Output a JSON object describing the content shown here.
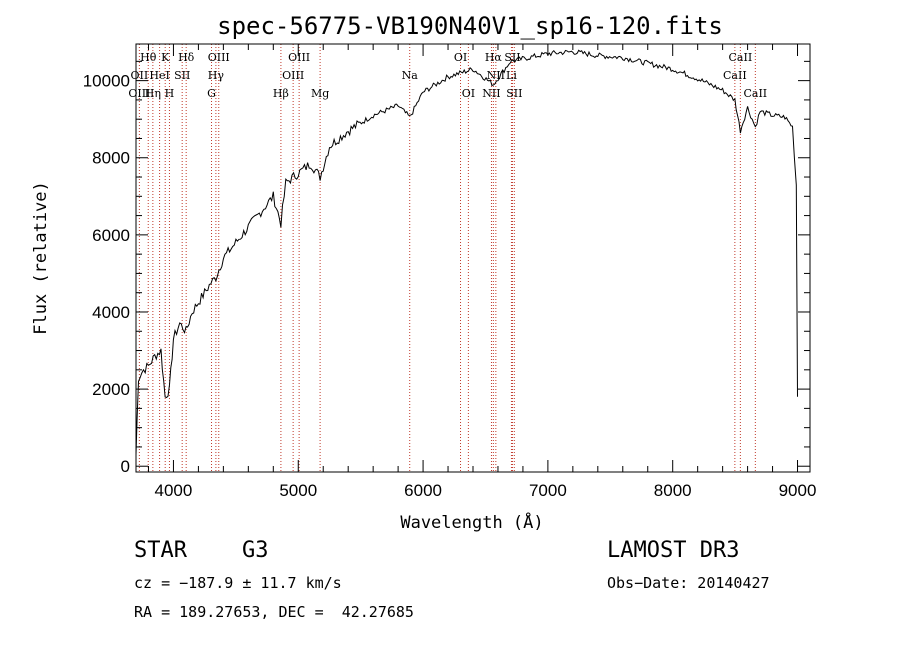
{
  "chart_data": {
    "type": "line",
    "title": "spec-56775-VB190N40V1_sp16-120.fits",
    "xlabel": "Wavelength (Å)",
    "ylabel": "Flux (relative)",
    "xlim": [
      3700,
      9100
    ],
    "ylim": [
      -150,
      10950
    ],
    "xticks": [
      4000,
      5000,
      6000,
      7000,
      8000,
      9000
    ],
    "yticks": [
      0,
      2000,
      4000,
      6000,
      8000,
      10000
    ],
    "series": [
      {
        "name": "spectrum",
        "points": [
          [
            3700,
            300
          ],
          [
            3720,
            2300
          ],
          [
            3760,
            2500
          ],
          [
            3800,
            2600
          ],
          [
            3850,
            2850
          ],
          [
            3900,
            3000
          ],
          [
            3933,
            1800
          ],
          [
            3968,
            2000
          ],
          [
            4000,
            3300
          ],
          [
            4050,
            3700
          ],
          [
            4101,
            3500
          ],
          [
            4150,
            4000
          ],
          [
            4200,
            4250
          ],
          [
            4250,
            4500
          ],
          [
            4300,
            4750
          ],
          [
            4340,
            4900
          ],
          [
            4400,
            5400
          ],
          [
            4500,
            5800
          ],
          [
            4600,
            6200
          ],
          [
            4700,
            6600
          ],
          [
            4800,
            7000
          ],
          [
            4861,
            6300
          ],
          [
            4900,
            7350
          ],
          [
            5000,
            7600
          ],
          [
            5100,
            7850
          ],
          [
            5175,
            7500
          ],
          [
            5250,
            8300
          ],
          [
            5400,
            8700
          ],
          [
            5600,
            9100
          ],
          [
            5800,
            9350
          ],
          [
            5893,
            9050
          ],
          [
            6000,
            9700
          ],
          [
            6200,
            10100
          ],
          [
            6400,
            10300
          ],
          [
            6563,
            9900
          ],
          [
            6700,
            10500
          ],
          [
            7000,
            10700
          ],
          [
            7200,
            10750
          ],
          [
            7400,
            10650
          ],
          [
            7600,
            10600
          ],
          [
            7800,
            10450
          ],
          [
            8000,
            10300
          ],
          [
            8200,
            10050
          ],
          [
            8400,
            9750
          ],
          [
            8498,
            9500
          ],
          [
            8542,
            8700
          ],
          [
            8600,
            9300
          ],
          [
            8662,
            8800
          ],
          [
            8700,
            9200
          ],
          [
            8800,
            9100
          ],
          [
            8900,
            9050
          ],
          [
            8960,
            8800
          ],
          [
            8990,
            7300
          ],
          [
            9000,
            1800
          ]
        ]
      }
    ],
    "annotations": [
      {
        "label": "Hθ",
        "x": 3798,
        "row": 1
      },
      {
        "label": "K",
        "x": 3934,
        "row": 1
      },
      {
        "label": "Hδ",
        "x": 4102,
        "row": 1
      },
      {
        "label": "OIII",
        "x": 4363,
        "row": 1
      },
      {
        "label": "OIII",
        "x": 5007,
        "row": 1
      },
      {
        "label": "OI",
        "x": 6300,
        "row": 1
      },
      {
        "label": "Hα",
        "x": 6563,
        "row": 1
      },
      {
        "label": "SII",
        "x": 6716,
        "row": 1
      },
      {
        "label": "CaII",
        "x": 8542,
        "row": 1
      },
      {
        "label": "OII",
        "x": 3727,
        "row": 2
      },
      {
        "label": "HeI",
        "x": 3889,
        "row": 2
      },
      {
        "label": "SII",
        "x": 4070,
        "row": 2
      },
      {
        "label": "Hγ",
        "x": 4340,
        "row": 2
      },
      {
        "label": "OIII",
        "x": 4959,
        "row": 2
      },
      {
        "label": "Na",
        "x": 5893,
        "row": 2
      },
      {
        "label": "NII",
        "x": 6583,
        "row": 2
      },
      {
        "label": "Li",
        "x": 6708,
        "row": 2
      },
      {
        "label": "CaII",
        "x": 8498,
        "row": 2
      },
      {
        "label": "OIII",
        "x": 3727,
        "row": 3
      },
      {
        "label": "Hη",
        "x": 3835,
        "row": 3
      },
      {
        "label": "H",
        "x": 3968,
        "row": 3
      },
      {
        "label": "G",
        "x": 4305,
        "row": 3
      },
      {
        "label": "Hβ",
        "x": 4861,
        "row": 3
      },
      {
        "label": "Mg",
        "x": 5175,
        "row": 3
      },
      {
        "label": "OI",
        "x": 6363,
        "row": 3
      },
      {
        "label": "NII",
        "x": 6548,
        "row": 3
      },
      {
        "label": "SII",
        "x": 6731,
        "row": 3
      },
      {
        "label": "CaII",
        "x": 8662,
        "row": 3
      }
    ],
    "line_markers": [
      3727,
      3798,
      3835,
      3889,
      3934,
      3968,
      4070,
      4102,
      4305,
      4340,
      4363,
      4861,
      4959,
      5007,
      5175,
      5893,
      6300,
      6363,
      6548,
      6563,
      6583,
      6708,
      6716,
      6731,
      8498,
      8542,
      8662
    ],
    "grid": false
  },
  "info": {
    "object_class": "STAR",
    "subclass": "G3",
    "survey": "LAMOST DR3",
    "redshift": "cz = −187.9 ± 11.7 km/s",
    "obs_date": "Obs−Date: 20140427",
    "coords": "RA = 189.27653, DEC =  42.27685"
  }
}
